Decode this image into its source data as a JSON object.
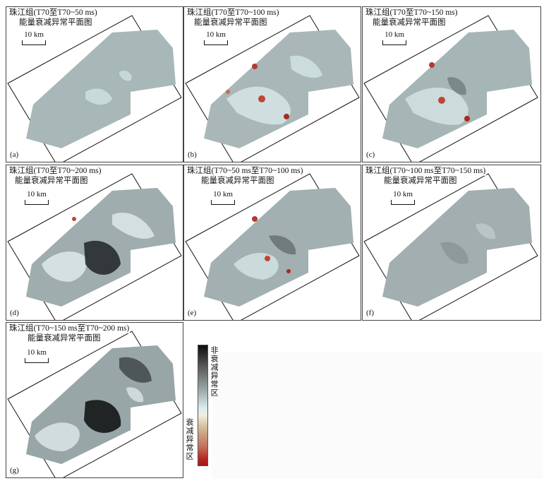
{
  "panels": [
    {
      "title": "珠江组(T70至T70~50 ms)",
      "subtitle": "能量衰减异常平面图",
      "scale": "10 km",
      "label": "(a)"
    },
    {
      "title": "珠江组(T70至T70~100 ms)",
      "subtitle": "能量衰减异常平面图",
      "scale": "10 km",
      "label": "(b)"
    },
    {
      "title": "珠江组(T70至T70~150 ms)",
      "subtitle": "能量衰减异常平面图",
      "scale": "10 km",
      "label": "(c)"
    },
    {
      "title": "珠江组(T70至T70~200 ms)",
      "subtitle": "能量衰减异常平面图",
      "scale": "10 km",
      "label": "(d)"
    },
    {
      "title": "珠江组(T70~50 ms至T70~100 ms)",
      "subtitle": "能量衰减异常平面图",
      "scale": "10 km",
      "label": "(e)"
    },
    {
      "title": "珠江组(T70~100 ms至T70~150 ms)",
      "subtitle": "能量衰减异常平面图",
      "scale": "10 km",
      "label": "(f)"
    },
    {
      "title": "珠江组(T70~150 ms至T70~200 ms)",
      "subtitle": "能量衰减异常平面图",
      "scale": "10 km",
      "label": "(g)"
    }
  ],
  "legend": {
    "top_label": "非衰减异常区",
    "bottom_label": "衰减异常区",
    "colors": [
      "#0d0d0d",
      "#a7b4b6",
      "#d8ecec",
      "#d9c8a6",
      "#a8161a"
    ]
  }
}
